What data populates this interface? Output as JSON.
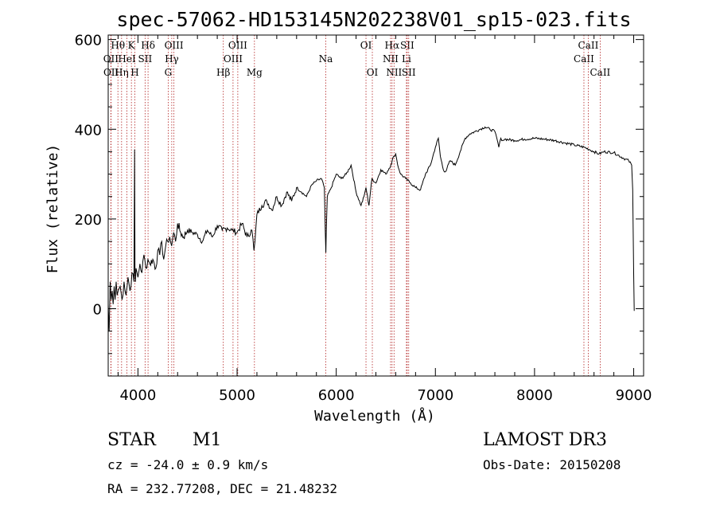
{
  "chart_data": {
    "type": "line",
    "title": "spec-57062-HD153145N202238V01_sp15-023.fits",
    "xlabel": "Wavelength (Å)",
    "ylabel": "Flux (relative)",
    "xlim": [
      3700,
      9100
    ],
    "ylim": [
      -150,
      610
    ],
    "xticks": [
      4000,
      5000,
      6000,
      7000,
      8000,
      9000
    ],
    "yticks": [
      0,
      200,
      400,
      600
    ],
    "grid": false,
    "series": [
      {
        "x": [
          3700,
          3710,
          3720,
          3730,
          3740,
          3750,
          3760,
          3770,
          3780,
          3790,
          3800,
          3820,
          3840,
          3860,
          3880,
          3900,
          3920,
          3940,
          3960,
          3966,
          3970,
          3975,
          3980,
          4000,
          4020,
          4040,
          4060,
          4080,
          4100,
          4120,
          4150,
          4180,
          4200,
          4220,
          4240,
          4260,
          4280,
          4300,
          4320,
          4340,
          4360,
          4380,
          4400,
          4430,
          4460,
          4500,
          4550,
          4600,
          4650,
          4700,
          4750,
          4800,
          4850,
          4900,
          4950,
          5000,
          5050,
          5100,
          5150,
          5170,
          5180,
          5200,
          5250,
          5300,
          5350,
          5400,
          5450,
          5500,
          5550,
          5600,
          5650,
          5700,
          5750,
          5800,
          5850,
          5880,
          5890,
          5895,
          5900,
          5910,
          5950,
          6000,
          6050,
          6100,
          6150,
          6200,
          6250,
          6280,
          6300,
          6330,
          6360,
          6400,
          6450,
          6500,
          6550,
          6580,
          6600,
          6620,
          6650,
          6700,
          6750,
          6800,
          6850,
          6900,
          6950,
          7000,
          7030,
          7050,
          7080,
          7100,
          7150,
          7200,
          7250,
          7300,
          7350,
          7400,
          7450,
          7500,
          7550,
          7600,
          7620,
          7640,
          7660,
          7680,
          7700,
          7800,
          7900,
          8000,
          8100,
          8200,
          8300,
          8400,
          8500,
          8550,
          8600,
          8650,
          8700,
          8800,
          8900,
          8950,
          8980,
          8990,
          9000,
          9005
        ],
        "values": [
          10,
          -50,
          60,
          20,
          40,
          10,
          50,
          20,
          60,
          30,
          40,
          50,
          20,
          60,
          30,
          70,
          40,
          80,
          60,
          355,
          80,
          60,
          90,
          70,
          100,
          80,
          120,
          90,
          110,
          100,
          110,
          90,
          130,
          120,
          150,
          110,
          140,
          150,
          160,
          140,
          170,
          150,
          190,
          170,
          160,
          175,
          170,
          165,
          150,
          175,
          160,
          185,
          175,
          180,
          175,
          170,
          190,
          160,
          175,
          130,
          150,
          210,
          230,
          240,
          220,
          250,
          230,
          260,
          240,
          270,
          260,
          250,
          275,
          285,
          290,
          270,
          170,
          125,
          180,
          250,
          270,
          300,
          290,
          300,
          320,
          260,
          230,
          250,
          270,
          230,
          290,
          280,
          310,
          300,
          320,
          340,
          345,
          320,
          300,
          290,
          280,
          270,
          265,
          300,
          320,
          360,
          380,
          340,
          310,
          305,
          330,
          320,
          350,
          380,
          390,
          395,
          400,
          405,
          400,
          395,
          380,
          360,
          380,
          375,
          378,
          375,
          378,
          380,
          378,
          375,
          370,
          365,
          360,
          355,
          350,
          345,
          350,
          348,
          335,
          330,
          320,
          265,
          80,
          -5
        ]
      }
    ],
    "lines": [
      {
        "name": "OII",
        "wl": 3727,
        "row": 1
      },
      {
        "name": "OII",
        "wl": 3729,
        "row": 2
      },
      {
        "name": "Hθ",
        "wl": 3798,
        "row": 0
      },
      {
        "name": "Hη",
        "wl": 3835,
        "row": 2
      },
      {
        "name": "HeI",
        "wl": 3889,
        "row": 1
      },
      {
        "name": "K",
        "wl": 3934,
        "row": 0
      },
      {
        "name": "H",
        "wl": 3969,
        "row": 2
      },
      {
        "name": "Hδ",
        "wl": 4102,
        "row": 0
      },
      {
        "name": "SII",
        "wl": 4072,
        "row": 1
      },
      {
        "name": "G",
        "wl": 4305,
        "row": 2
      },
      {
        "name": "Hγ",
        "wl": 4341,
        "row": 1
      },
      {
        "name": "OIII",
        "wl": 4363,
        "row": 0
      },
      {
        "name": "Hβ",
        "wl": 4861,
        "row": 2
      },
      {
        "name": "OIII",
        "wl": 4959,
        "row": 1
      },
      {
        "name": "OIII",
        "wl": 5007,
        "row": 0
      },
      {
        "name": "Mg",
        "wl": 5175,
        "row": 2
      },
      {
        "name": "Na",
        "wl": 5894,
        "row": 1
      },
      {
        "name": "OI",
        "wl": 6300,
        "row": 0
      },
      {
        "name": "OI",
        "wl": 6364,
        "row": 2
      },
      {
        "name": "NII",
        "wl": 6548,
        "row": 1
      },
      {
        "name": "Hα",
        "wl": 6563,
        "row": 0
      },
      {
        "name": "NII",
        "wl": 6583,
        "row": 2
      },
      {
        "name": "Li",
        "wl": 6708,
        "row": 1
      },
      {
        "name": "SII",
        "wl": 6716,
        "row": 0
      },
      {
        "name": "SII",
        "wl": 6731,
        "row": 2
      },
      {
        "name": "CaII",
        "wl": 8498,
        "row": 1
      },
      {
        "name": "CaII",
        "wl": 8542,
        "row": 0
      },
      {
        "name": "CaII",
        "wl": 8662,
        "row": 2
      }
    ]
  },
  "info": {
    "class": "STAR",
    "subclass": "M1",
    "survey": "LAMOST DR3",
    "cz": "cz = -24.0 ± 0.9 km/s",
    "obsdate": "Obs-Date: 20150208",
    "radec": "RA = 232.77208, DEC =  21.48232"
  },
  "colors": {
    "axis": "#000000",
    "line_marker": "#b22222",
    "spectrum": "#000000"
  }
}
